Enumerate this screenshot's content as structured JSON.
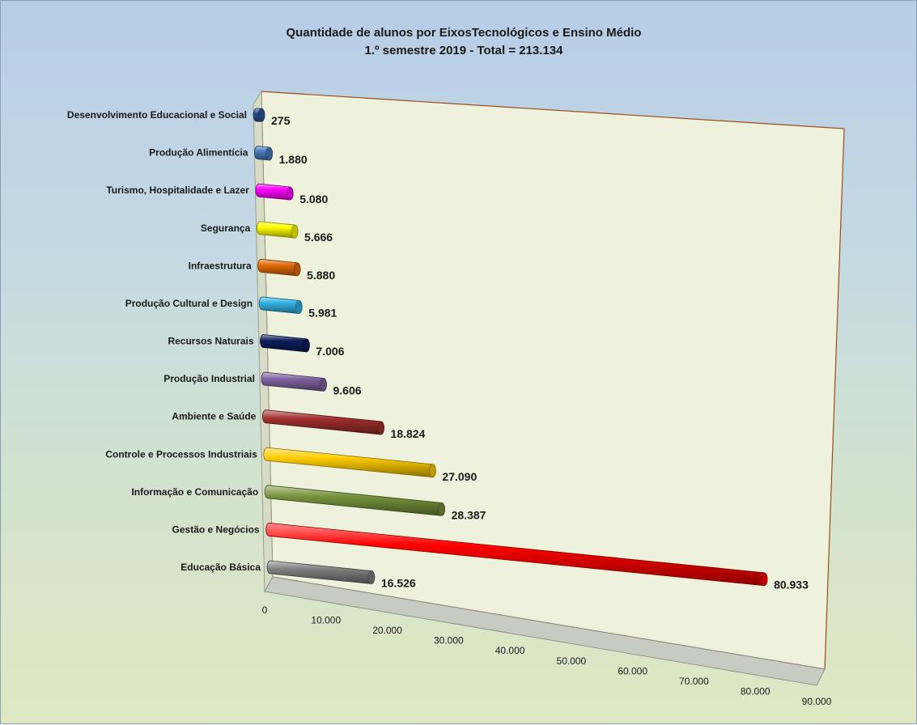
{
  "chart_data": {
    "type": "bar",
    "orientation": "horizontal",
    "title": [
      "Quantidade de alunos por EixosTecnológicos e Ensino Médio",
      "1.º semestre 2019  - Total = 213.134"
    ],
    "categories": [
      "Desenvolvimento Educacional e Social",
      "Produção Alimentícia",
      "Turismo, Hospitalidade e Lazer",
      "Segurança",
      "Infraestrutura",
      "Produção Cultural e Design",
      "Recursos Naturais",
      "Produção Industrial",
      "Ambiente e Saúde",
      "Controle e Processos Industriais",
      "Informação e Comunicação",
      "Gestão e Negócios",
      "Educação Básica"
    ],
    "values": [
      275,
      1880,
      5080,
      5666,
      5880,
      5981,
      7006,
      9606,
      18824,
      27090,
      28387,
      80933,
      16526
    ],
    "value_labels": [
      "275",
      "1.880",
      "5.080",
      "5.666",
      "5.880",
      "5.981",
      "7.006",
      "9.606",
      "18.824",
      "27.090",
      "28.387",
      "80.933",
      "16.526"
    ],
    "colors": [
      "#2f5597",
      "#4a7ebb",
      "#ff00ff",
      "#ffff00",
      "#e46c0a",
      "#33b5e5",
      "#0c1f5c",
      "#8064a2",
      "#a0302e",
      "#ffcc00",
      "#77933c",
      "#ff0000",
      "#808080"
    ],
    "x_ticks": [
      "0",
      "10.000",
      "20.000",
      "30.000",
      "40.000",
      "50.000",
      "60.000",
      "70.000",
      "80.000",
      "90.000"
    ],
    "xlim": [
      0,
      90000
    ],
    "grid": false,
    "legend": "none"
  }
}
